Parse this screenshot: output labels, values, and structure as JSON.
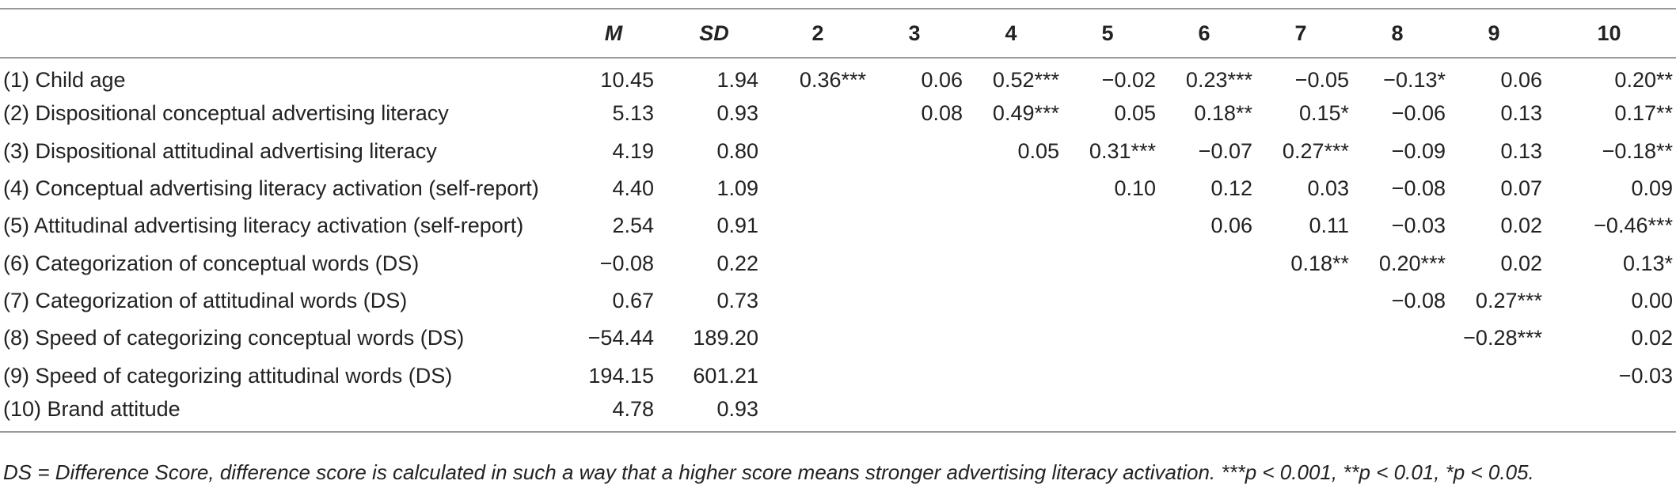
{
  "table": {
    "headers": [
      "",
      "M",
      "SD",
      "2",
      "3",
      "4",
      "5",
      "6",
      "7",
      "8",
      "9",
      "10"
    ],
    "rows": [
      {
        "label": "(1) Child age",
        "m": "10.45",
        "sd": "1.94",
        "cells": [
          "0.36***",
          "0.06",
          "0.52***",
          "−0.02",
          "0.23***",
          "−0.05",
          "−0.13*",
          "0.06",
          "0.20**"
        ]
      },
      {
        "label": "(2) Dispositional conceptual advertising literacy",
        "m": "5.13",
        "sd": "0.93",
        "cells": [
          "",
          "0.08",
          "0.49***",
          "0.05",
          "0.18**",
          "0.15*",
          "−0.06",
          "0.13",
          "0.17**"
        ]
      },
      {
        "label": "(3) Dispositional attitudinal advertising literacy",
        "m": "4.19",
        "sd": "0.80",
        "cells": [
          "",
          "",
          "0.05",
          "0.31***",
          "−0.07",
          "0.27***",
          "−0.09",
          "0.13",
          "−0.18**"
        ]
      },
      {
        "label": "(4) Conceptual advertising literacy activation (self-report)",
        "m": "4.40",
        "sd": "1.09",
        "cells": [
          "",
          "",
          "",
          "0.10",
          "0.12",
          "0.03",
          "−0.08",
          "0.07",
          "0.09"
        ]
      },
      {
        "label": "(5) Attitudinal advertising literacy activation (self-report)",
        "m": "2.54",
        "sd": "0.91",
        "cells": [
          "",
          "",
          "",
          "",
          "0.06",
          "0.11",
          "−0.03",
          "0.02",
          "−0.46***"
        ]
      },
      {
        "label": "(6) Categorization of conceptual words (DS)",
        "m": "−0.08",
        "sd": "0.22",
        "cells": [
          "",
          "",
          "",
          "",
          "",
          "0.18**",
          "0.20***",
          "0.02",
          "0.13*"
        ]
      },
      {
        "label": "(7) Categorization of attitudinal words (DS)",
        "m": "0.67",
        "sd": "0.73",
        "cells": [
          "",
          "",
          "",
          "",
          "",
          "",
          "−0.08",
          "0.27***",
          "0.00"
        ]
      },
      {
        "label": "(8) Speed of categorizing conceptual words (DS)",
        "m": "−54.44",
        "sd": "189.20",
        "cells": [
          "",
          "",
          "",
          "",
          "",
          "",
          "",
          "−0.28***",
          "0.02"
        ]
      },
      {
        "label": "(9) Speed of categorizing attitudinal words (DS)",
        "m": "194.15",
        "sd": "601.21",
        "cells": [
          "",
          "",
          "",
          "",
          "",
          "",
          "",
          "",
          "−0.03"
        ]
      },
      {
        "label": "(10) Brand attitude",
        "m": "4.78",
        "sd": "0.93",
        "cells": [
          "",
          "",
          "",
          "",
          "",
          "",
          "",
          "",
          ""
        ]
      }
    ]
  },
  "note": "DS = Difference Score, difference score is calculated in such a way that a higher score means stronger advertising literacy activation. ***p < 0.001, **p < 0.01, *p < 0.05."
}
